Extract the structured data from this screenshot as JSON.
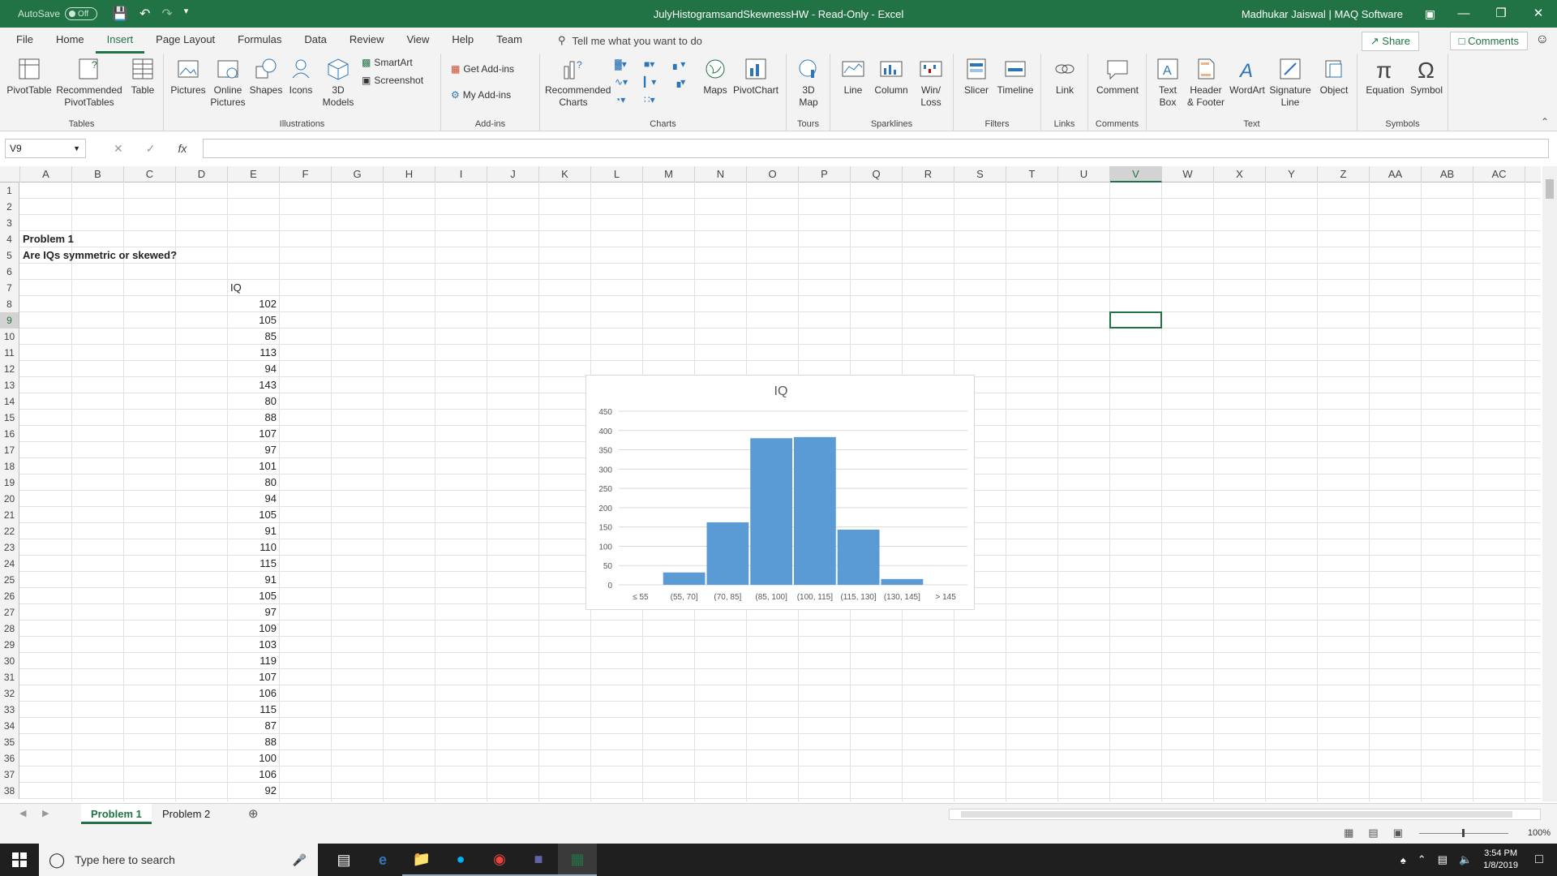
{
  "titlebar": {
    "autosave_label": "AutoSave",
    "autosave_state": "Off",
    "document_title": "JulyHistogramsandSkewnessHW  -  Read-Only  -  Excel",
    "user": "Madhukar Jaiswal | MAQ Software"
  },
  "menu": {
    "tabs": [
      "File",
      "Home",
      "Insert",
      "Page Layout",
      "Formulas",
      "Data",
      "Review",
      "View",
      "Help",
      "Team"
    ],
    "active_tab": "Insert",
    "tell_me": "Tell me what you want to do",
    "share": "Share",
    "comments": "Comments"
  },
  "ribbon": {
    "groups": {
      "tables": "Tables",
      "illustrations": "Illustrations",
      "addins": "Add-ins",
      "charts": "Charts",
      "tours": "Tours",
      "sparklines": "Sparklines",
      "filters": "Filters",
      "links": "Links",
      "comments": "Comments",
      "text": "Text",
      "symbols": "Symbols"
    },
    "buttons": {
      "pivottable": "PivotTable",
      "recommended_pivottables": "Recommended PivotTables",
      "table": "Table",
      "pictures": "Pictures",
      "online_pictures": "Online Pictures",
      "shapes": "Shapes",
      "icons": "Icons",
      "models_3d": "3D Models",
      "smartart": "SmartArt",
      "screenshot": "Screenshot",
      "get_addins": "Get Add-ins",
      "my_addins": "My Add-ins",
      "recommended_charts": "Recommended Charts",
      "maps": "Maps",
      "pivotchart": "PivotChart",
      "map_3d": "3D Map",
      "line": "Line",
      "column": "Column",
      "winloss": "Win/ Loss",
      "slicer": "Slicer",
      "timeline": "Timeline",
      "link": "Link",
      "comment": "Comment",
      "text_box": "Text Box",
      "header_footer": "Header & Footer",
      "wordart": "WordArt",
      "signature_line": "Signature Line",
      "object": "Object",
      "equation": "Equation",
      "symbol": "Symbol"
    }
  },
  "formula_bar": {
    "name_box": "V9",
    "formula": ""
  },
  "grid": {
    "columns": [
      "A",
      "B",
      "C",
      "D",
      "E",
      "F",
      "G",
      "H",
      "I",
      "J",
      "K",
      "L",
      "M",
      "N",
      "O",
      "P",
      "Q",
      "R",
      "S",
      "T",
      "U",
      "V",
      "W",
      "X",
      "Y",
      "Z",
      "AA",
      "AB",
      "AC"
    ],
    "selected_column": "V",
    "selected_row": 9,
    "rows": [
      1,
      2,
      3,
      4,
      5,
      6,
      7,
      8,
      9,
      10,
      11,
      12,
      13,
      14,
      15,
      16,
      17,
      18,
      19,
      20,
      21,
      22,
      23,
      24,
      25,
      26,
      27,
      28,
      29,
      30,
      31,
      32,
      33,
      34,
      35,
      36,
      37,
      38
    ],
    "problem_title": "Problem 1",
    "question": "Are IQs symmetric or skewed?",
    "iq_header": "IQ",
    "iq_values": [
      102,
      105,
      85,
      113,
      94,
      143,
      80,
      88,
      107,
      97,
      101,
      80,
      94,
      105,
      91,
      110,
      115,
      91,
      105,
      97,
      109,
      103,
      119,
      107,
      106,
      115,
      87,
      88,
      100,
      106,
      92
    ]
  },
  "chart_data": {
    "type": "bar",
    "title": "IQ",
    "categories": [
      "≤ 55",
      "(55, 70]",
      "(70, 85]",
      "(85, 100]",
      "(100, 115]",
      "(115, 130]",
      "(130, 145]",
      "> 145"
    ],
    "values": [
      0,
      32,
      162,
      380,
      383,
      143,
      15,
      0
    ],
    "yticks": [
      0,
      50,
      100,
      150,
      200,
      250,
      300,
      350,
      400,
      450
    ],
    "ylim": [
      0,
      450
    ],
    "bar_color": "#5b9bd5",
    "grid": true
  },
  "sheets": {
    "tabs": [
      "Problem 1",
      "Problem 2"
    ],
    "active": "Problem 1"
  },
  "status": {
    "zoom": "100%"
  },
  "taskbar": {
    "search_placeholder": "Type here to search",
    "time": "3:54 PM",
    "date": "1/8/2019"
  }
}
